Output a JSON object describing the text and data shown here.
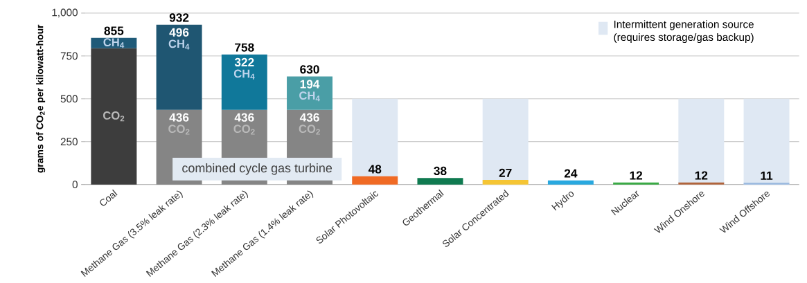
{
  "chart_data": {
    "type": "bar",
    "stacked": true,
    "ylabel": "grams of CO$_{2}$e per kilowatt-hour",
    "categories": [
      "Coal",
      "Methane Gas (3.5% leak rate)",
      "Methane Gas (2.3% leak rate)",
      "Methane Gas (1.4% leak rate)",
      "Solar Photovoltaic",
      "Geothermal",
      "Solar Concentrated",
      "Hydro",
      "Nuclear",
      "Wind Onshore",
      "Wind Offshore"
    ],
    "series": [
      {
        "name": "CO$_{2}$",
        "values": [
          795,
          436,
          436,
          436,
          48,
          38,
          27,
          24,
          12,
          12,
          11
        ],
        "colors": [
          "#3d3d3d",
          "#858585",
          "#858585",
          "#858585",
          "#f06a24",
          "#0f7a50",
          "#f5c534",
          "#29a8df",
          "#3aaa45",
          "#b0643c",
          "#9dbbe0"
        ],
        "value_labels": [
          null,
          "436",
          "436",
          "436",
          null,
          null,
          null,
          null,
          null,
          null,
          null
        ]
      },
      {
        "name": "CH$_{4}$",
        "values": [
          60,
          496,
          322,
          194,
          null,
          null,
          null,
          null,
          null,
          null,
          null
        ],
        "colors": [
          "#1f5a78",
          "#1f5672",
          "#10789a",
          "#4a9ea6",
          null,
          null,
          null,
          null,
          null,
          null,
          null
        ],
        "value_labels": [
          null,
          "496",
          "322",
          "194",
          null,
          null,
          null,
          null,
          null,
          null,
          null
        ]
      }
    ],
    "totals": [
      "855",
      "932",
      "758",
      "630",
      "48",
      "38",
      "27",
      "24",
      "12",
      "12",
      "11"
    ],
    "annotations": [
      "combined cycle gas turbine"
    ],
    "bands": [
      {
        "axis": "x",
        "from": "Solar Photovoltaic",
        "to": "Solar Photovoltaic",
        "label": "Intermittent generation source (requires storage/gas backup)",
        "color": "#dfe8f3"
      },
      {
        "axis": "x",
        "from": "Solar Concentrated",
        "to": "Solar Concentrated",
        "color": "#dfe8f3"
      },
      {
        "axis": "x",
        "from": "Wind Onshore",
        "to": "Wind Onshore",
        "color": "#dfe8f3"
      },
      {
        "axis": "x",
        "from": "Wind Offshore",
        "to": "Wind Offshore",
        "color": "#dfe8f3"
      }
    ],
    "ylim": [
      0,
      1000
    ],
    "yticks": [
      0,
      250,
      500,
      750,
      {
        "value": 1000,
        "label": "1,000"
      }
    ],
    "grid": "y",
    "legend": "top right"
  }
}
